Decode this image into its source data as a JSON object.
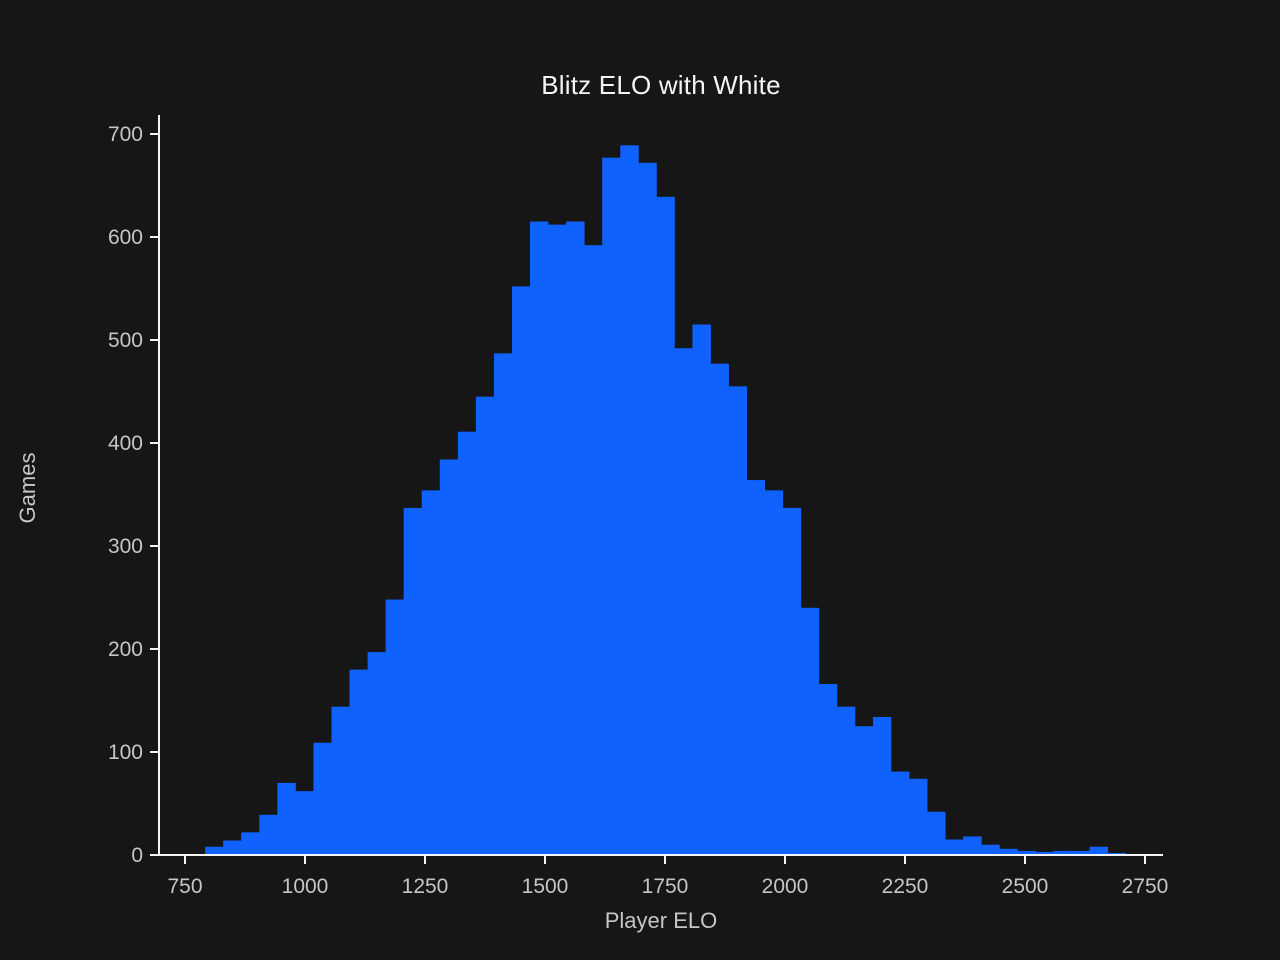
{
  "chart_data": {
    "type": "bar",
    "subtype": "histogram",
    "title": "Blitz ELO with White",
    "xlabel": "Player ELO",
    "ylabel": "Games",
    "x_ticks": [
      750,
      1000,
      1250,
      1500,
      1750,
      2000,
      2250,
      2500,
      2750
    ],
    "y_ticks": [
      0,
      100,
      200,
      300,
      400,
      500,
      600,
      700
    ],
    "xlim": [
      696,
      2787
    ],
    "ylim": [
      0,
      718
    ],
    "grid": false,
    "legend": "none",
    "bin_start_elo": 792,
    "bin_width_elo": 37.6,
    "counts": [
      8,
      14,
      22,
      39,
      70,
      62,
      109,
      144,
      180,
      197,
      248,
      337,
      354,
      384,
      411,
      445,
      487,
      552,
      615,
      612,
      615,
      592,
      677,
      689,
      672,
      639,
      492,
      515,
      477,
      455,
      364,
      354,
      337,
      240,
      166,
      144,
      125,
      134,
      81,
      74,
      42,
      15,
      18,
      10,
      6,
      4,
      3,
      4,
      4,
      8,
      2,
      1
    ],
    "bar_color": "#0f62fe",
    "background_color": "#161616",
    "axis_line_color": "#f4f4f4",
    "tick_label_color": "#c6c6c6",
    "title_color": "#f4f4f4"
  }
}
